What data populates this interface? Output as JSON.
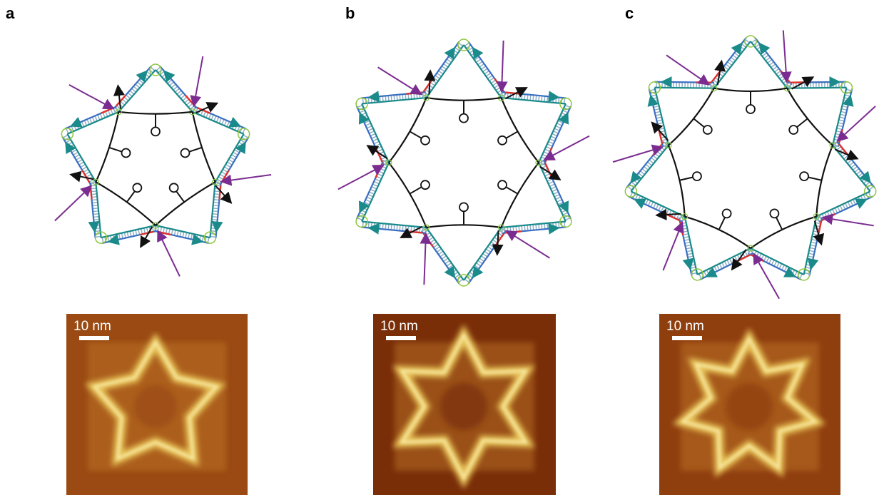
{
  "panels": [
    {
      "label": "a",
      "scale_bar": "10 nm"
    },
    {
      "label": "b",
      "scale_bar": "10 nm"
    },
    {
      "label": "c",
      "scale_bar": "10 nm"
    }
  ]
}
